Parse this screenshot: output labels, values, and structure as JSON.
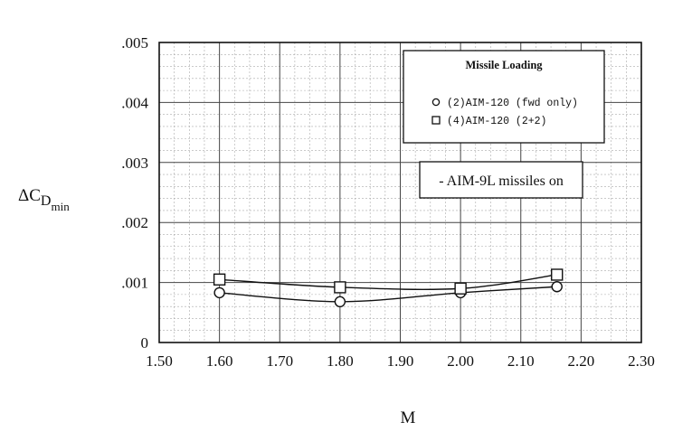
{
  "chart_data": {
    "type": "line",
    "title": "",
    "xlabel": "M",
    "ylabel_main": "ΔC",
    "ylabel_sub": "D",
    "ylabel_subsub": "min",
    "xlim": [
      1.5,
      2.3
    ],
    "ylim": [
      0,
      0.005
    ],
    "x_tick_values": [
      1.5,
      1.6,
      1.7,
      1.8,
      1.9,
      2.0,
      2.1,
      2.2,
      2.3
    ],
    "x_tick_labels": [
      "1.50",
      "1.60",
      "1.70",
      "1.80",
      "1.90",
      "2.00",
      "2.10",
      "2.20",
      "2.30"
    ],
    "y_tick_values": [
      0,
      0.001,
      0.002,
      0.003,
      0.004,
      0.005
    ],
    "y_tick_labels": [
      "0",
      ".001",
      ".002",
      ".003",
      ".004",
      ".005"
    ],
    "grid": true,
    "minor_grid": true,
    "legend_placement": "top-right",
    "legend_title": "Missile Loading",
    "series": [
      {
        "name": "(2)AIM-120 (fwd only)",
        "marker": "circle",
        "x": [
          1.6,
          1.8,
          2.0,
          2.16
        ],
        "y": [
          0.00083,
          0.00068,
          0.00083,
          0.00093
        ]
      },
      {
        "name": "(4)AIM-120 (2+2)",
        "marker": "square",
        "x": [
          1.6,
          1.8,
          2.0,
          2.16
        ],
        "y": [
          0.00105,
          0.00092,
          0.0009,
          0.00113
        ]
      }
    ],
    "annotations": [
      "- AIM-9L missiles on"
    ],
    "colors": {
      "line": "#111111",
      "grid_major": "#444444",
      "grid_minor": "#aaaaaa",
      "background": "#ffffff"
    }
  }
}
